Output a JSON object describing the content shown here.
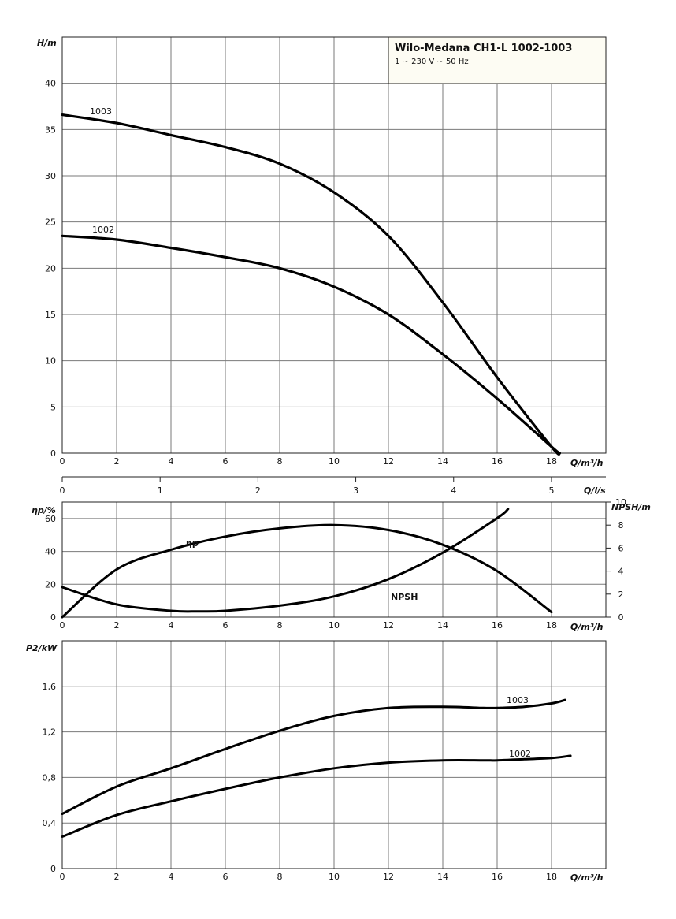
{
  "title": {
    "main": "Wilo-Medana CH1-L 1002-1003",
    "sub": "1 ~ 230 V ~ 50 Hz"
  },
  "chart_data": [
    {
      "id": "head",
      "type": "line",
      "ylabel": "H/m",
      "xlabel": "Q/m³/h",
      "xlim": [
        0,
        20
      ],
      "ylim": [
        0,
        45
      ],
      "x_ticks": [
        0,
        2,
        4,
        6,
        8,
        10,
        12,
        14,
        16,
        18
      ],
      "y_ticks": [
        0,
        5,
        10,
        15,
        20,
        25,
        30,
        35,
        40
      ],
      "grid": true,
      "series": [
        {
          "name": "1003",
          "x": [
            0,
            2,
            4,
            6,
            8,
            10,
            12,
            14,
            16,
            18,
            18.3
          ],
          "y": [
            36.6,
            35.7,
            34.4,
            33.1,
            31.3,
            28.2,
            23.5,
            16.3,
            8.2,
            0.7,
            0
          ]
        },
        {
          "name": "1002",
          "x": [
            0,
            2,
            4,
            6,
            8,
            10,
            12,
            14,
            16,
            18,
            18.3
          ],
          "y": [
            23.5,
            23.1,
            22.2,
            21.2,
            20.0,
            18.0,
            15.0,
            10.7,
            5.9,
            0.7,
            0
          ]
        }
      ]
    },
    {
      "id": "flow-ls-axis",
      "type": "line",
      "xlabel": "Q/l/s",
      "x_ticks": [
        0,
        1,
        2,
        3,
        4,
        5
      ],
      "xlim": [
        0,
        5.556
      ]
    },
    {
      "id": "efficiency-npsh",
      "type": "line",
      "ylabel": "ηp/%",
      "y2label": "NPSH/m",
      "xlabel": "Q/m³/h",
      "xlim": [
        0,
        20
      ],
      "ylim": [
        0,
        70
      ],
      "y2lim": [
        0,
        10
      ],
      "x_ticks": [
        0,
        2,
        4,
        6,
        8,
        10,
        12,
        14,
        16,
        18
      ],
      "y_ticks": [
        0,
        20,
        40,
        60
      ],
      "y2_ticks": [
        0,
        2,
        4,
        6,
        8,
        10
      ],
      "grid": true,
      "series": [
        {
          "name": "ηp",
          "axis": "left",
          "x": [
            0,
            2,
            4,
            6,
            8,
            10,
            12,
            14,
            16,
            18
          ],
          "y": [
            0,
            29,
            41,
            49,
            54,
            56,
            53,
            44,
            28,
            3
          ]
        },
        {
          "name": "NPSH",
          "axis": "right",
          "x": [
            0,
            2,
            4,
            5,
            6,
            8,
            10,
            12,
            14,
            16,
            16.4
          ],
          "y": [
            2.6,
            1.1,
            0.55,
            0.5,
            0.55,
            1.0,
            1.8,
            3.3,
            5.6,
            8.6,
            9.4
          ]
        }
      ]
    },
    {
      "id": "power",
      "type": "line",
      "ylabel": "P2/kW",
      "xlabel": "Q/m³/h",
      "xlim": [
        0,
        20
      ],
      "ylim": [
        0,
        2.0
      ],
      "x_ticks": [
        0,
        2,
        4,
        6,
        8,
        10,
        12,
        14,
        16,
        18
      ],
      "y_ticks": [
        0,
        0.4,
        0.8,
        1.2,
        1.6
      ],
      "y_ticklabels": [
        "0",
        "0,4",
        "0,8",
        "1,2",
        "1,6"
      ],
      "grid": true,
      "series": [
        {
          "name": "1003",
          "x": [
            0,
            2,
            4,
            6,
            8,
            10,
            12,
            14,
            15.5,
            16,
            17,
            18,
            18.5
          ],
          "y": [
            0.48,
            0.72,
            0.88,
            1.05,
            1.21,
            1.34,
            1.41,
            1.42,
            1.41,
            1.41,
            1.42,
            1.45,
            1.48
          ]
        },
        {
          "name": "1002",
          "x": [
            0,
            2,
            4,
            6,
            8,
            10,
            12,
            14,
            15.5,
            16,
            17,
            18,
            18.7
          ],
          "y": [
            0.28,
            0.47,
            0.59,
            0.7,
            0.8,
            0.88,
            0.93,
            0.95,
            0.95,
            0.95,
            0.96,
            0.97,
            0.99
          ]
        }
      ]
    }
  ]
}
